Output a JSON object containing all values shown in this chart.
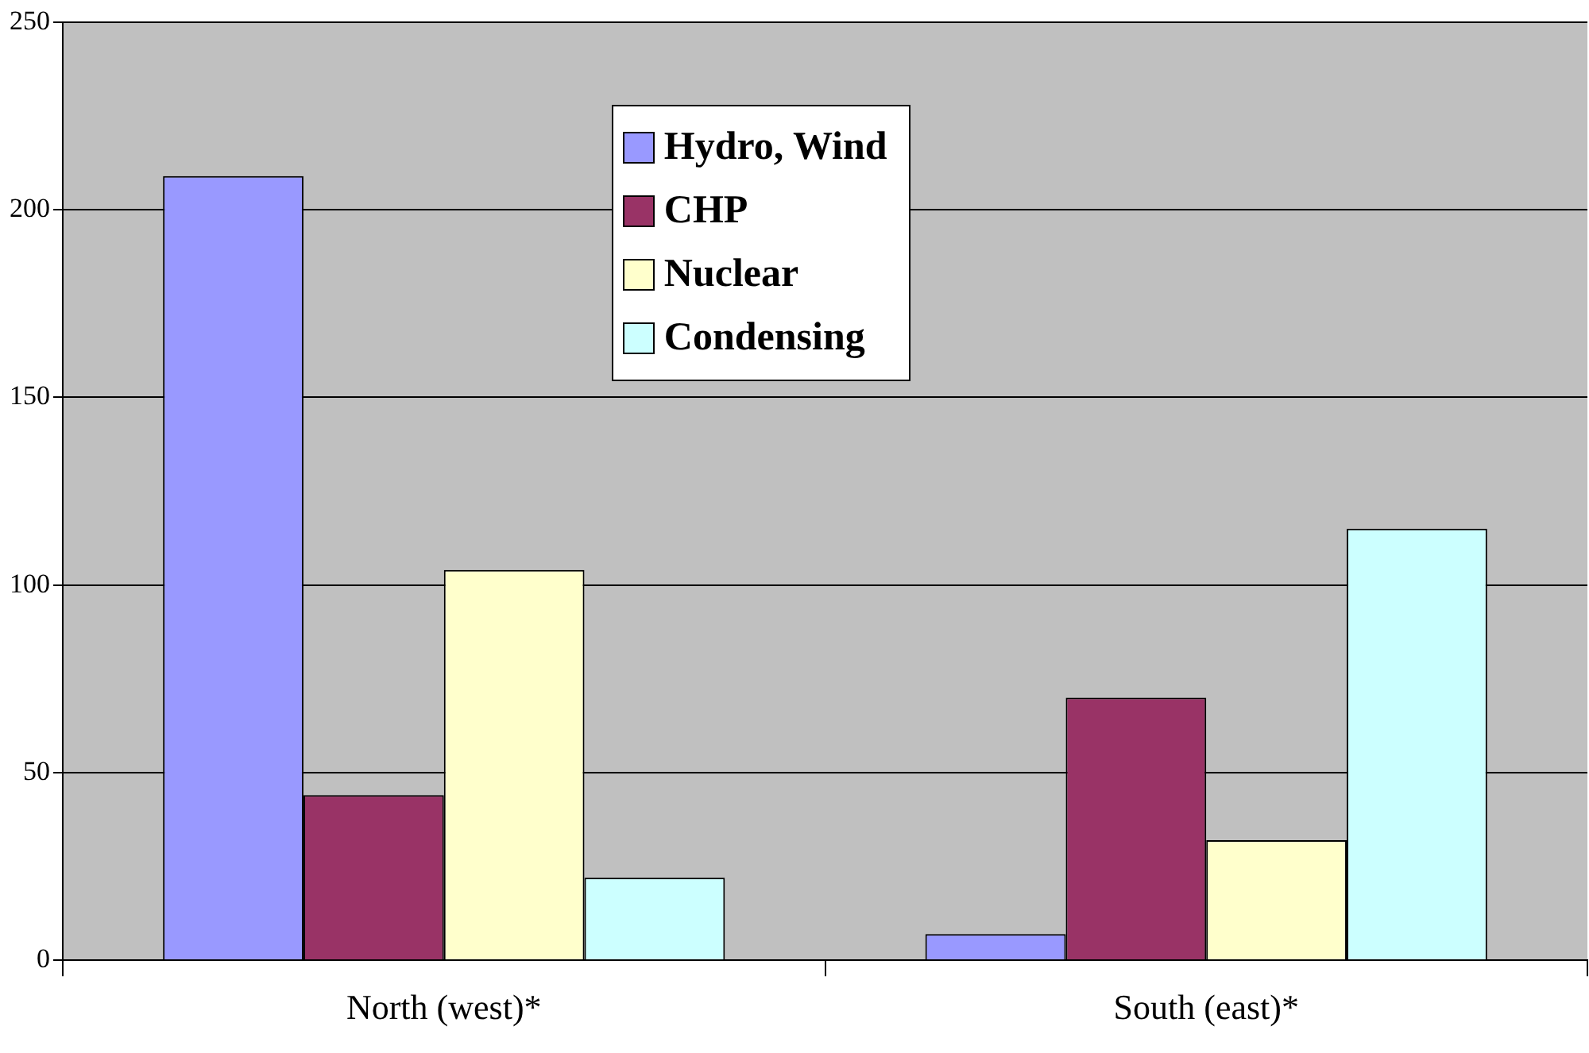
{
  "chart_data": {
    "type": "bar",
    "categories": [
      "North (west)*",
      "South (east)*"
    ],
    "series": [
      {
        "name": "Hydro, Wind",
        "color": "#9999ff",
        "values": [
          209,
          7
        ]
      },
      {
        "name": "CHP",
        "color": "#993366",
        "values": [
          44,
          70
        ]
      },
      {
        "name": "Nuclear",
        "color": "#ffffcc",
        "values": [
          104,
          32
        ]
      },
      {
        "name": "Condensing",
        "color": "#ccffff",
        "values": [
          22,
          115
        ]
      }
    ],
    "ylim": [
      0,
      250
    ],
    "yticks": [
      0,
      50,
      100,
      150,
      200,
      250
    ],
    "grid": "y",
    "legend": "top"
  }
}
